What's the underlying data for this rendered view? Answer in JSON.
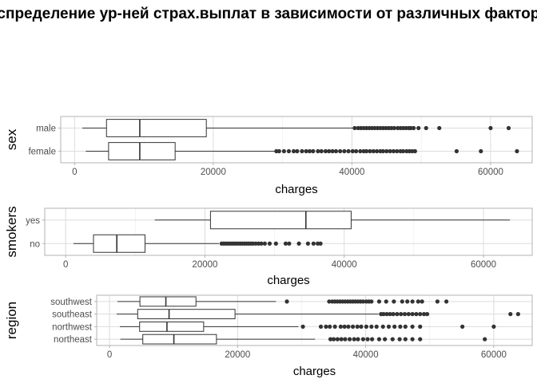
{
  "title": "Распределение ур-ней страх.выплат в зависимости от различных факторов",
  "chart_data": [
    {
      "type": "boxplot",
      "orientation": "horizontal",
      "xlabel": "charges",
      "ylabel": "sex",
      "xlim": [
        -2000,
        66000
      ],
      "xticks": [
        0,
        20000,
        40000,
        60000
      ],
      "xtick_labels": [
        "0",
        "20000",
        "40000",
        "60000"
      ],
      "grid": true,
      "groups": [
        {
          "label": "female",
          "min": 1610,
          "q1": 4900,
          "median": 9400,
          "q3": 14500,
          "max": 28900,
          "outliers": [
            29100,
            29500,
            30200,
            30900,
            31600,
            32100,
            32800,
            33400,
            33900,
            34400,
            35100,
            35600,
            36200,
            36700,
            37200,
            37700,
            38300,
            38900,
            39500,
            40100,
            40600,
            41200,
            41700,
            42100,
            42600,
            43100,
            43600,
            44100,
            44500,
            45000,
            45500,
            46000,
            46500,
            47000,
            47400,
            47900,
            48300,
            48700,
            49100,
            55100,
            58600,
            63800
          ]
        },
        {
          "label": "male",
          "min": 1120,
          "q1": 4600,
          "median": 9400,
          "q3": 19000,
          "max": 40200,
          "outliers": [
            40400,
            40900,
            41300,
            41700,
            42100,
            42500,
            42900,
            43300,
            43700,
            44100,
            44500,
            44900,
            45300,
            45700,
            46100,
            46600,
            47000,
            47400,
            47800,
            48200,
            48500,
            48900,
            49600,
            50700,
            52600,
            60000,
            62600
          ]
        }
      ]
    },
    {
      "type": "boxplot",
      "orientation": "horizontal",
      "xlabel": "charges",
      "ylabel": "smokers",
      "xlim": [
        -3000,
        67000
      ],
      "xticks": [
        0,
        20000,
        40000,
        60000
      ],
      "xtick_labels": [
        "0",
        "20000",
        "40000",
        "60000"
      ],
      "grid": true,
      "groups": [
        {
          "label": "no",
          "min": 1120,
          "q1": 4000,
          "median": 7350,
          "q3": 11400,
          "max": 22000,
          "outliers": [
            22400,
            22700,
            23000,
            23300,
            23600,
            23900,
            24200,
            24500,
            24800,
            25100,
            25400,
            25700,
            26000,
            26300,
            26600,
            26900,
            27300,
            27700,
            28100,
            28600,
            29300,
            30200,
            31600,
            32100,
            33500,
            34800,
            35600,
            36200,
            36600
          ]
        },
        {
          "label": "yes",
          "min": 12800,
          "q1": 20800,
          "median": 34500,
          "q3": 41000,
          "max": 63800,
          "outliers": []
        }
      ]
    },
    {
      "type": "boxplot",
      "orientation": "horizontal",
      "xlabel": "charges",
      "ylabel": "region",
      "xlim": [
        -2000,
        66000
      ],
      "xticks": [
        0,
        20000,
        40000,
        60000
      ],
      "xtick_labels": [
        "0",
        "20000",
        "40000",
        "60000"
      ],
      "grid": true,
      "groups": [
        {
          "label": "northeast",
          "min": 1690,
          "q1": 5200,
          "median": 10050,
          "q3": 16700,
          "max": 32100,
          "outliers": [
            34500,
            35000,
            35600,
            36200,
            36800,
            37500,
            38200,
            38800,
            39600,
            40300,
            41000,
            42100,
            43000,
            44200,
            45300,
            46200,
            47300,
            48500,
            58600
          ]
        },
        {
          "label": "northwest",
          "min": 1620,
          "q1": 4700,
          "median": 8970,
          "q3": 14700,
          "max": 29500,
          "outliers": [
            30200,
            33000,
            33800,
            34400,
            35200,
            36100,
            36700,
            37300,
            38000,
            38700,
            39300,
            40100,
            40900,
            41700,
            42700,
            43600,
            44500,
            45400,
            46200,
            47300,
            48500,
            55100,
            60000
          ]
        },
        {
          "label": "southeast",
          "min": 1120,
          "q1": 4400,
          "median": 9300,
          "q3": 19600,
          "max": 42000,
          "outliers": [
            42400,
            42800,
            43300,
            43800,
            44300,
            44900,
            45500,
            46100,
            46700,
            47300,
            47900,
            48500,
            49100,
            49600,
            62600,
            63800
          ]
        },
        {
          "label": "southwest",
          "min": 1240,
          "q1": 4750,
          "median": 8800,
          "q3": 13500,
          "max": 26000,
          "outliers": [
            27700,
            34300,
            34800,
            35200,
            35600,
            36000,
            36400,
            36800,
            37200,
            37600,
            38000,
            38400,
            38800,
            39200,
            39600,
            40100,
            40500,
            40900,
            42100,
            43200,
            44400,
            45700,
            46500,
            47300,
            48200,
            48800,
            51200,
            52600
          ]
        }
      ]
    }
  ]
}
